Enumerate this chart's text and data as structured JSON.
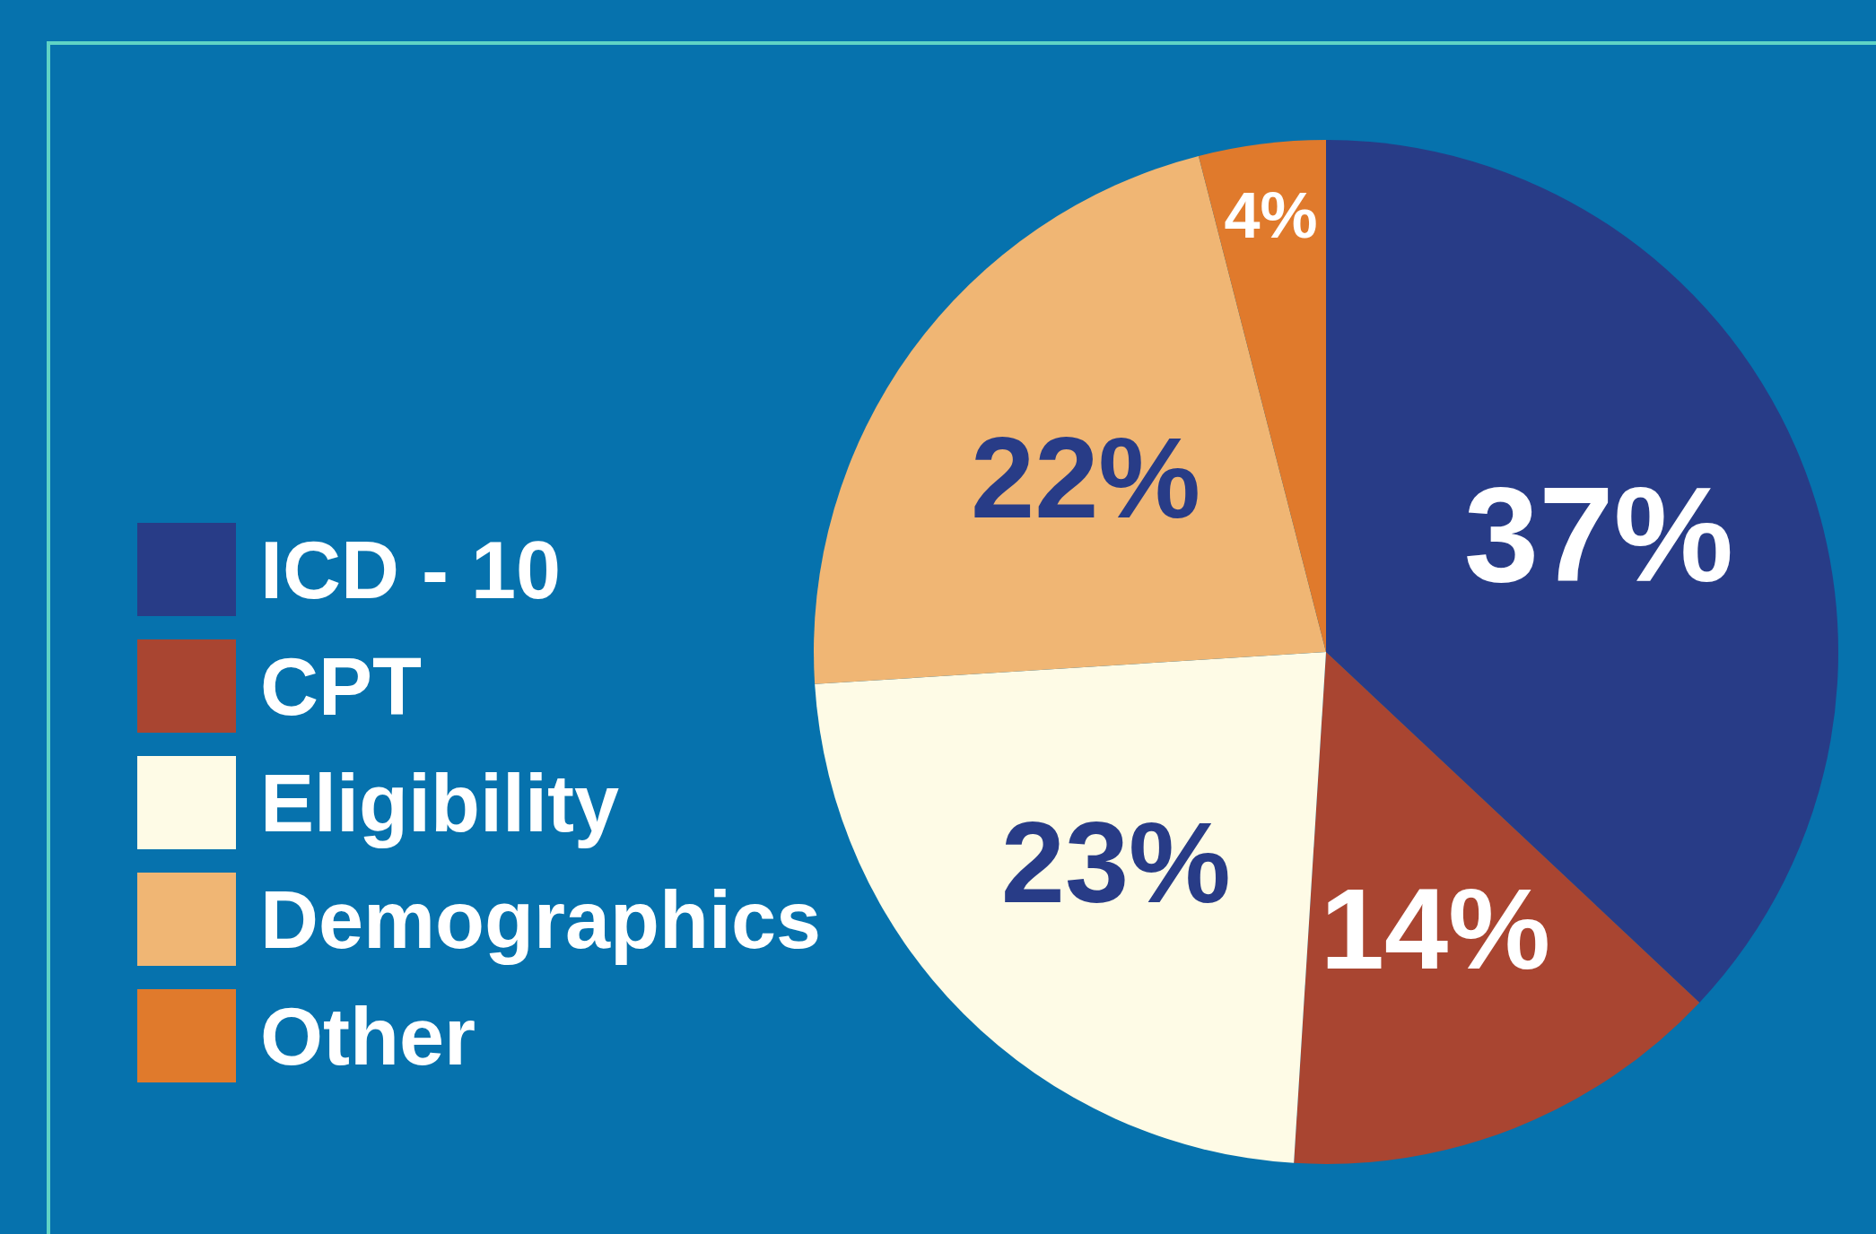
{
  "chart_data": {
    "type": "pie",
    "categories": [
      "ICD - 10",
      "CPT",
      "Eligibility",
      "Demographics",
      "Other"
    ],
    "values": [
      37,
      14,
      23,
      22,
      4
    ],
    "colors": [
      "#283c87",
      "#a94531",
      "#fefbe6",
      "#f0b674",
      "#e07a2c"
    ],
    "value_labels": [
      "37%",
      "14%",
      "23%",
      "22%",
      "4%"
    ],
    "legend": "left"
  }
}
